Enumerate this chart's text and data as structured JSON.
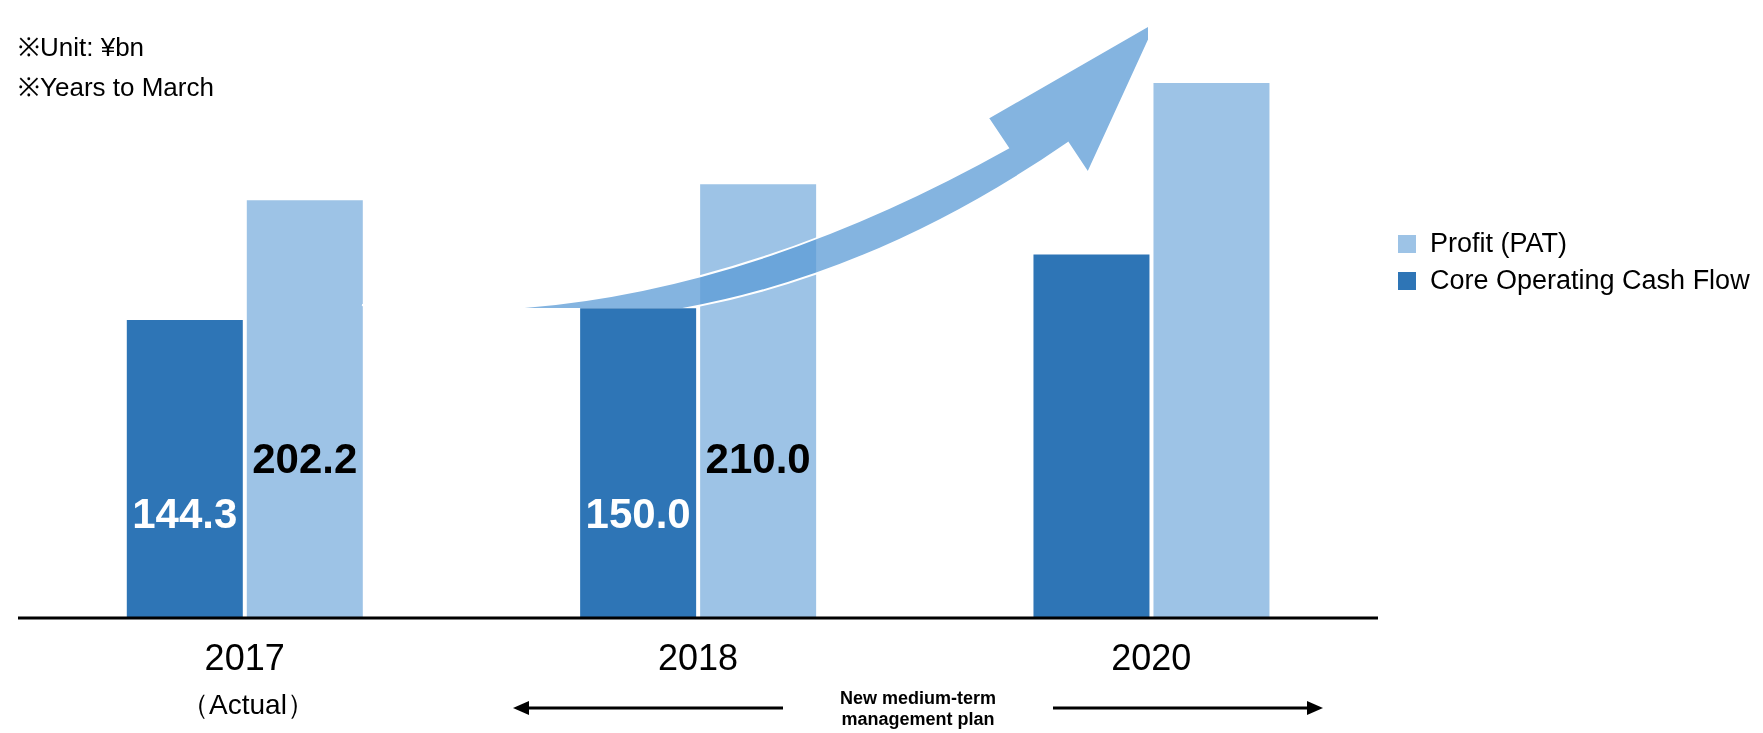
{
  "chart_data": {
    "type": "bar",
    "categories": [
      "2017",
      "2018",
      "2020"
    ],
    "series": [
      {
        "name": "Core Operating Cash Flow",
        "color": "#2e75b6",
        "values": [
          144.3,
          150.0,
          176
        ],
        "value_labels": [
          "144.3",
          "150.0",
          null
        ]
      },
      {
        "name": "Profit (PAT)",
        "color": "#9dc3e6",
        "values": [
          202.2,
          210.0,
          259
        ],
        "value_labels": [
          "202.2",
          "210.0",
          null
        ]
      }
    ],
    "legend": "right",
    "annotations": [
      "※Unit: ¥bn",
      "※Years to March",
      "（Actual）",
      "New medium-term management plan"
    ]
  }
}
